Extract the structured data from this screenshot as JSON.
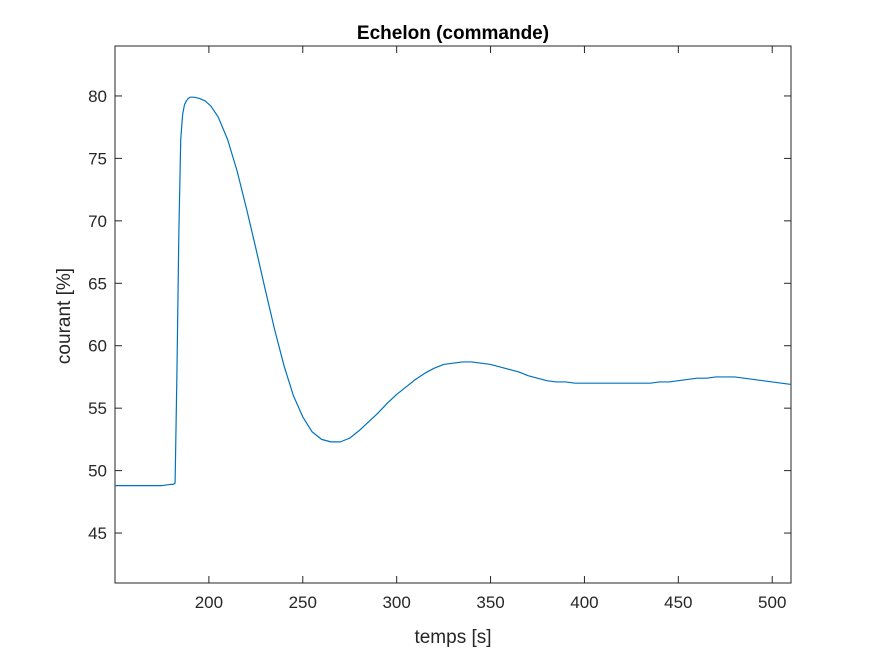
{
  "chart_data": {
    "type": "line",
    "title": "Echelon (commande)",
    "xlabel": "temps [s]",
    "ylabel": "courant [%]",
    "xlim": [
      150,
      510
    ],
    "ylim": [
      41,
      84
    ],
    "xticks": [
      200,
      250,
      300,
      350,
      400,
      450,
      500
    ],
    "yticks": [
      45,
      50,
      55,
      60,
      65,
      70,
      75,
      80
    ],
    "grid": false,
    "line_color": "#0072BD",
    "series": [
      {
        "x": [
          150,
          155,
          160,
          165,
          170,
          175,
          180,
          181,
          182,
          183,
          184,
          185,
          186,
          187,
          188,
          189,
          190,
          192,
          195,
          198,
          201,
          205,
          210,
          215,
          220,
          225,
          230,
          235,
          240,
          245,
          250,
          255,
          260,
          265,
          270,
          275,
          280,
          285,
          290,
          295,
          300,
          305,
          310,
          315,
          320,
          325,
          330,
          335,
          340,
          345,
          350,
          355,
          360,
          365,
          370,
          375,
          380,
          385,
          390,
          395,
          400,
          405,
          410,
          415,
          420,
          425,
          430,
          435,
          440,
          445,
          450,
          455,
          460,
          465,
          470,
          475,
          480,
          485,
          490,
          495,
          500,
          505,
          510
        ],
        "values": [
          48.8,
          48.8,
          48.8,
          48.8,
          48.8,
          48.8,
          48.9,
          48.9,
          49.0,
          58.0,
          69.0,
          76.5,
          78.5,
          79.3,
          79.6,
          79.8,
          79.9,
          79.9,
          79.8,
          79.6,
          79.2,
          78.3,
          76.5,
          74.0,
          71.0,
          67.8,
          64.5,
          61.3,
          58.4,
          56.0,
          54.3,
          53.1,
          52.5,
          52.3,
          52.3,
          52.6,
          53.2,
          53.9,
          54.6,
          55.4,
          56.1,
          56.7,
          57.3,
          57.8,
          58.2,
          58.5,
          58.6,
          58.7,
          58.7,
          58.6,
          58.5,
          58.3,
          58.1,
          57.9,
          57.6,
          57.4,
          57.2,
          57.1,
          57.1,
          57.0,
          57.0,
          57.0,
          57.0,
          57.0,
          57.0,
          57.0,
          57.0,
          57.0,
          57.1,
          57.1,
          57.2,
          57.3,
          57.4,
          57.4,
          57.5,
          57.5,
          57.5,
          57.4,
          57.3,
          57.2,
          57.1,
          57.0,
          56.9
        ]
      }
    ]
  }
}
